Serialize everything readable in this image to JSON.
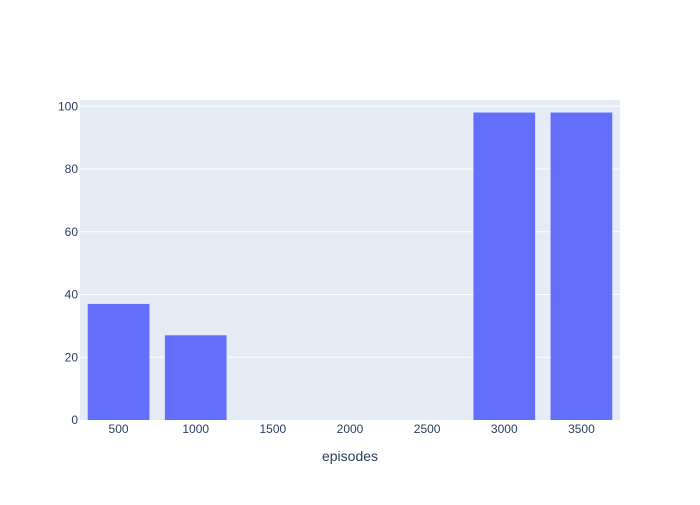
{
  "chart_data": {
    "type": "bar",
    "title": "",
    "xlabel": "episodes",
    "ylabel": "",
    "categories": [
      "500",
      "1000",
      "1500",
      "2000",
      "2500",
      "3000",
      "3500"
    ],
    "values": [
      37,
      27,
      0,
      0,
      0,
      98,
      98
    ],
    "ylim": [
      0,
      102
    ],
    "yticks": [
      0,
      20,
      40,
      60,
      80,
      100
    ],
    "grid": true,
    "legend": "none",
    "colors": {
      "bar": "#636efa",
      "plot_background": "#e5ecf6",
      "grid": "#ffffff",
      "text": "#2a3f5f"
    }
  }
}
